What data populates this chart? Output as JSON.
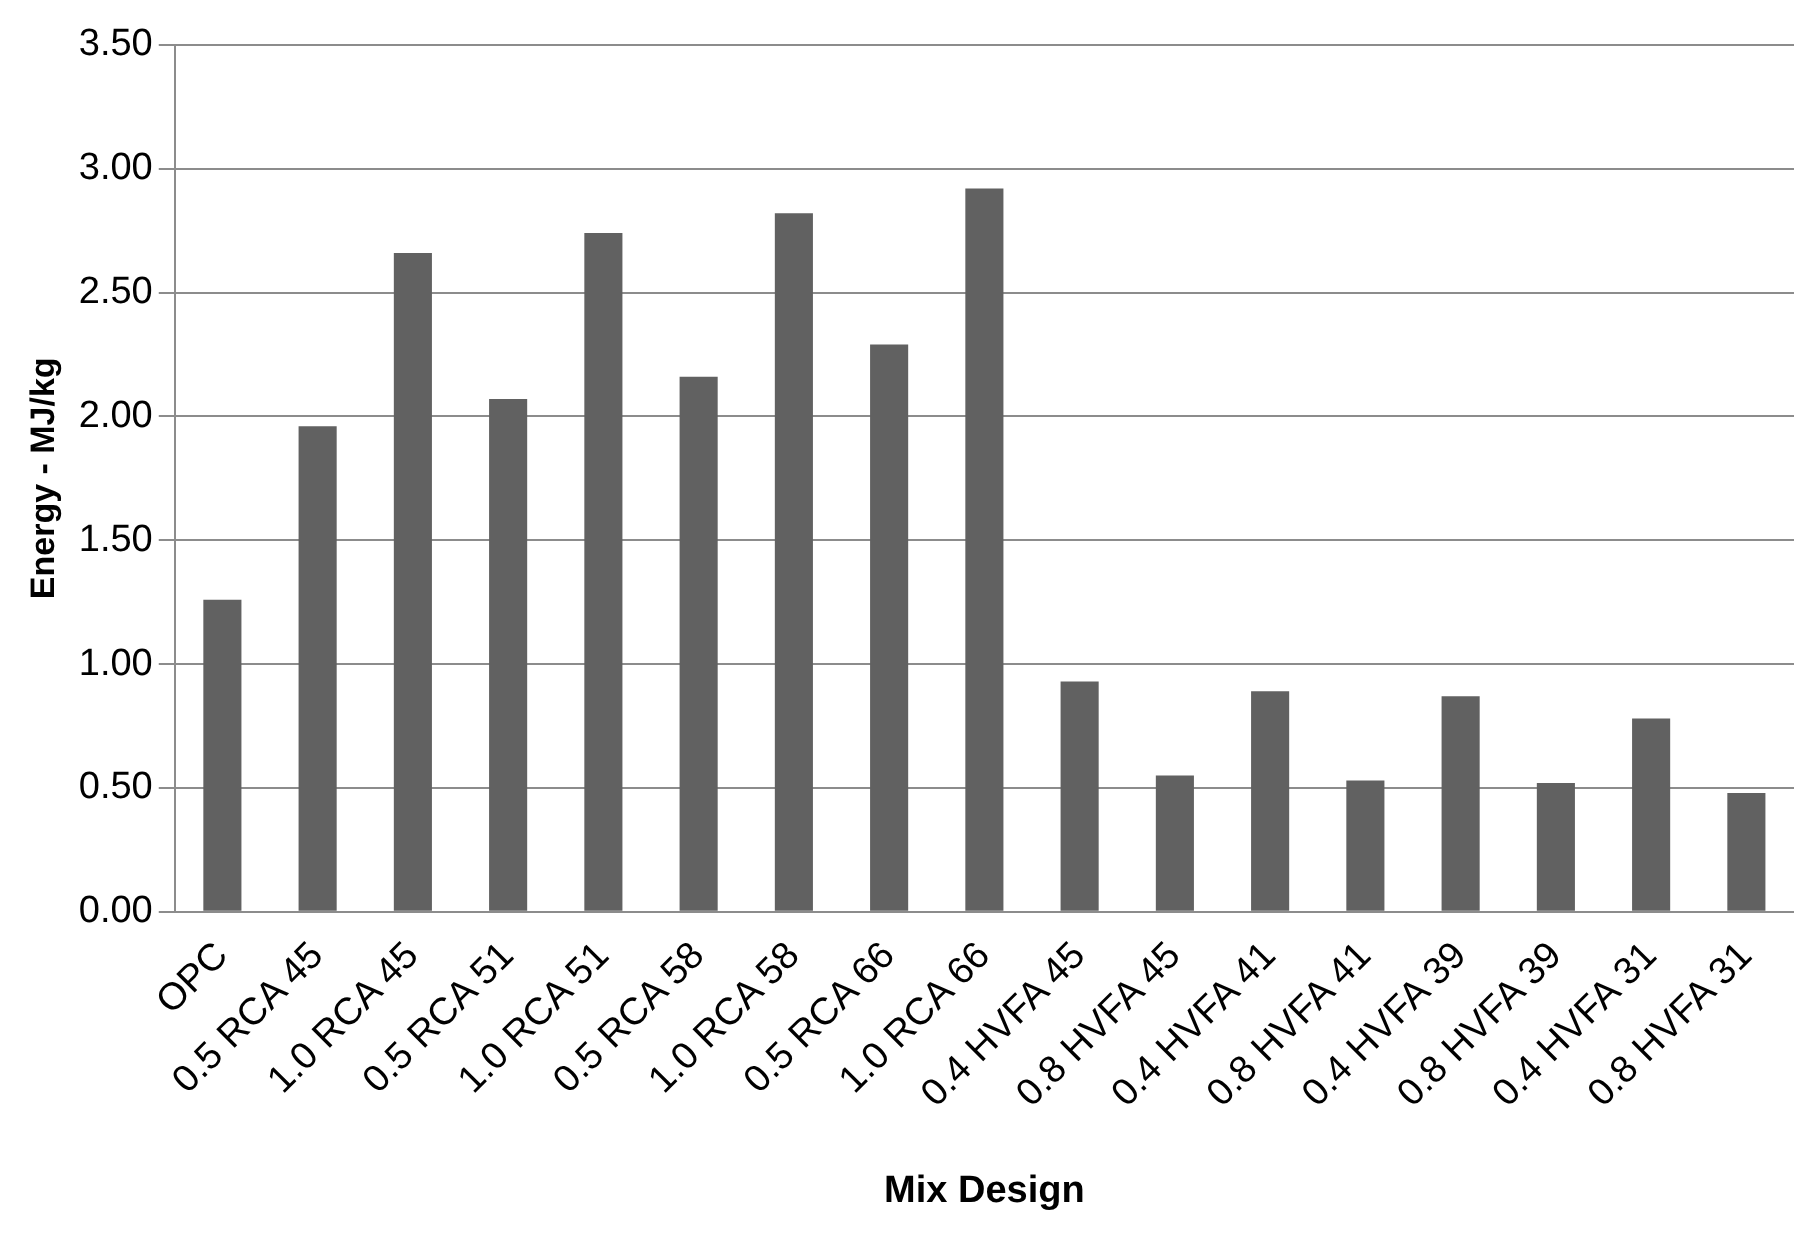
{
  "chart_data": {
    "type": "bar",
    "xlabel": "Mix Design",
    "ylabel": "Energy - MJ/kg",
    "categories": [
      "OPC",
      "0.5 RCA 45",
      "1.0 RCA 45",
      "0.5 RCA 51",
      "1.0 RCA 51",
      "0.5 RCA 58",
      "1.0 RCA 58",
      "0.5 RCA 66",
      "1.0 RCA 66",
      "0.4 HVFA 45",
      "0.8 HVFA 45",
      "0.4 HVFA 41",
      "0.8 HVFA 41",
      "0.4 HVFA 39",
      "0.8 HVFA 39",
      "0.4 HVFA 31",
      "0.8 HVFA 31"
    ],
    "values": [
      1.26,
      1.96,
      2.66,
      2.07,
      2.74,
      2.16,
      2.82,
      2.29,
      2.92,
      0.93,
      0.55,
      0.89,
      0.53,
      0.87,
      0.52,
      0.78,
      0.48
    ],
    "color": "#616161",
    "ylim": [
      0,
      3.5
    ],
    "yticks": [
      {
        "value": 0,
        "label": "0.00"
      },
      {
        "value": 0.5,
        "label": "0.50"
      },
      {
        "value": 1,
        "label": "1.00"
      },
      {
        "value": 1.5,
        "label": "1.50"
      },
      {
        "value": 2,
        "label": "2.00"
      },
      {
        "value": 2.5,
        "label": "2.50"
      },
      {
        "value": 3,
        "label": "3.00"
      },
      {
        "value": 3.5,
        "label": "3.50"
      }
    ],
    "grid": "y",
    "legend": false
  }
}
